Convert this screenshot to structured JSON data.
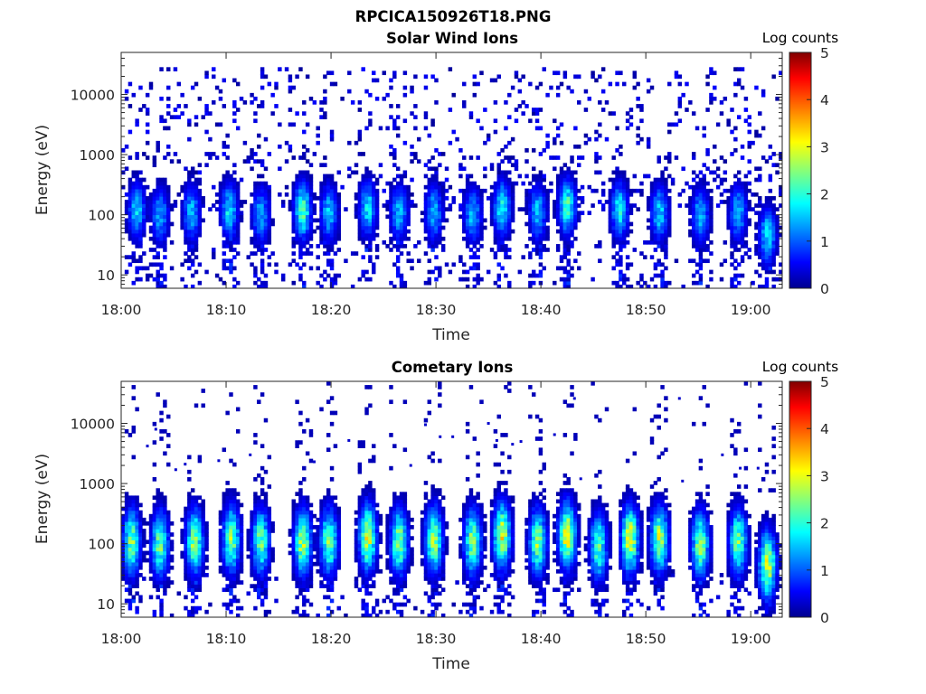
{
  "figure": {
    "title": "RPCICA150926T18.PNG"
  },
  "colormap": {
    "name": "jet",
    "stops": [
      "#00008f",
      "#0000ff",
      "#00ffff",
      "#ffff00",
      "#ff0000",
      "#800000"
    ]
  },
  "chart_data": [
    {
      "type": "heatmap",
      "title": "Solar Wind Ions",
      "xlabel": "Time",
      "ylabel": "Energy (eV)",
      "x_ticks": [
        "18:00",
        "18:10",
        "18:20",
        "18:30",
        "18:40",
        "18:50",
        "19:00"
      ],
      "xlim": [
        "18:00",
        "19:03"
      ],
      "y_scale": "log",
      "y_ticks": [
        "10",
        "100",
        "1000",
        "10000"
      ],
      "ylim": [
        6,
        50000
      ],
      "colorbar": {
        "label": "Log counts",
        "ticks": [
          "0",
          "1",
          "2",
          "3",
          "4",
          "5"
        ],
        "range": [
          0,
          5
        ]
      },
      "sweep_centers_min": [
        1.5,
        3.7,
        6.7,
        10.3,
        13.3,
        17.3,
        19.8,
        23.5,
        26.5,
        29.8,
        33.5,
        36.3,
        39.7,
        42.5,
        47.5,
        51.3,
        55.2,
        58.8,
        61.6
      ],
      "sweep_peak_log_counts": [
        1.6,
        1.4,
        1.5,
        1.7,
        1.4,
        2.2,
        1.5,
        1.7,
        1.5,
        1.5,
        1.5,
        1.9,
        1.5,
        2.1,
        1.8,
        1.6,
        1.5,
        1.5,
        1.7
      ],
      "sweep_peak_energy_eV": [
        120,
        100,
        110,
        120,
        100,
        120,
        110,
        130,
        110,
        110,
        100,
        130,
        110,
        140,
        120,
        110,
        100,
        110,
        45
      ],
      "background_log_counts_max": 0.5,
      "background_energy_range_eV": [
        100,
        30000
      ],
      "grid": false
    },
    {
      "type": "heatmap",
      "title": "Cometary Ions",
      "xlabel": "Time",
      "ylabel": "Energy (eV)",
      "x_ticks": [
        "18:00",
        "18:10",
        "18:20",
        "18:30",
        "18:40",
        "18:50",
        "19:00"
      ],
      "xlim": [
        "18:00",
        "19:03"
      ],
      "y_scale": "log",
      "y_ticks": [
        "10",
        "100",
        "1000",
        "10000"
      ],
      "ylim": [
        6,
        50000
      ],
      "colorbar": {
        "label": "Log counts",
        "ticks": [
          "0",
          "1",
          "2",
          "3",
          "4",
          "5"
        ],
        "range": [
          0,
          5
        ]
      },
      "sweep_centers_min": [
        1.0,
        3.7,
        7.0,
        10.5,
        13.3,
        17.3,
        19.8,
        23.5,
        26.5,
        29.8,
        33.5,
        36.3,
        39.7,
        42.5,
        45.5,
        48.5,
        51.3,
        55.2,
        58.8,
        61.6
      ],
      "sweep_peak_log_counts": [
        2.4,
        2.3,
        2.5,
        2.5,
        2.3,
        2.7,
        2.4,
        2.9,
        2.5,
        2.6,
        2.5,
        2.9,
        2.5,
        3.0,
        2.2,
        3.0,
        2.7,
        2.5,
        2.4,
        2.9
      ],
      "sweep_peak_energy_eV": [
        110,
        100,
        110,
        120,
        110,
        110,
        110,
        130,
        110,
        120,
        110,
        140,
        110,
        140,
        90,
        120,
        120,
        100,
        110,
        45
      ],
      "scattered_points": [
        {
          "t": 2.5,
          "E": 4200
        },
        {
          "t": 3.3,
          "E": 8000
        },
        {
          "t": 5.2,
          "E": 1700
        },
        {
          "t": 6.1,
          "E": 2100
        },
        {
          "t": 9.3,
          "E": 2400
        },
        {
          "t": 12.3,
          "E": 3000
        },
        {
          "t": 18.4,
          "E": 2300
        },
        {
          "t": 21.7,
          "E": 5200
        },
        {
          "t": 27.6,
          "E": 2000
        },
        {
          "t": 29.0,
          "E": 9500
        },
        {
          "t": 30.4,
          "E": 6000
        },
        {
          "t": 31.6,
          "E": 6000
        },
        {
          "t": 35.0,
          "E": 10000
        },
        {
          "t": 35.8,
          "E": 5200
        },
        {
          "t": 37.3,
          "E": 4500
        },
        {
          "t": 38.1,
          "E": 5000
        },
        {
          "t": 39.8,
          "E": 5500
        },
        {
          "t": 41.3,
          "E": 6500
        },
        {
          "t": 43.2,
          "E": 26000
        },
        {
          "t": 43.8,
          "E": 1200
        },
        {
          "t": 53.2,
          "E": 26000
        },
        {
          "t": 57.3,
          "E": 3000
        },
        {
          "t": 59.0,
          "E": 1800
        },
        {
          "t": 60.7,
          "E": 1800
        },
        {
          "t": 53.5,
          "E": 1100
        },
        {
          "t": 58.5,
          "E": 1400
        }
      ],
      "grid": false
    }
  ]
}
